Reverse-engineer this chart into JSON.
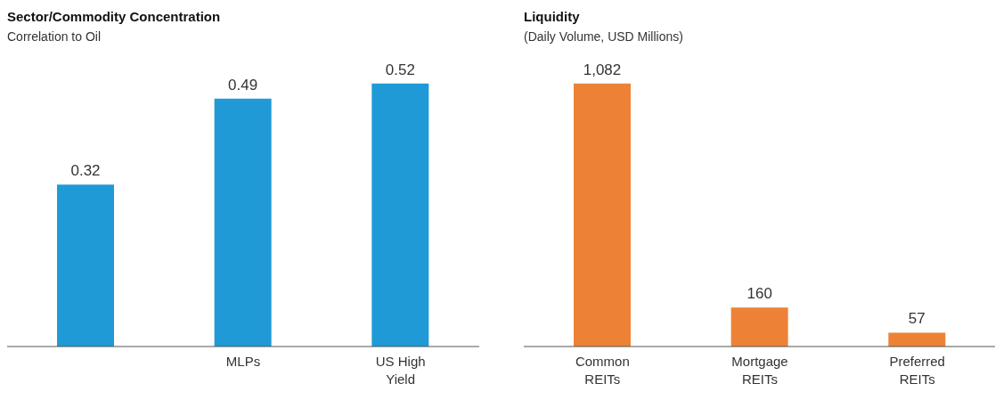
{
  "chart_data": [
    {
      "type": "bar",
      "title": "Sector/Commodity Concentration",
      "subtitle": "Correlation to Oil",
      "categories": [
        null,
        "MLPs",
        "US High Yield"
      ],
      "values": [
        0.32,
        0.49,
        0.52
      ],
      "color": "#1f9ad6",
      "data_labels": true
    },
    {
      "type": "bar",
      "title": "Liquidity",
      "subtitle": "(Daily Volume, USD Millions)",
      "categories": [
        "Common REITs",
        "Mortgage REITs",
        "Preferred REITs"
      ],
      "values": [
        1082,
        160,
        57
      ],
      "value_labels": [
        "1,082",
        "160",
        "57"
      ],
      "color": "#ed8236"
    }
  ]
}
